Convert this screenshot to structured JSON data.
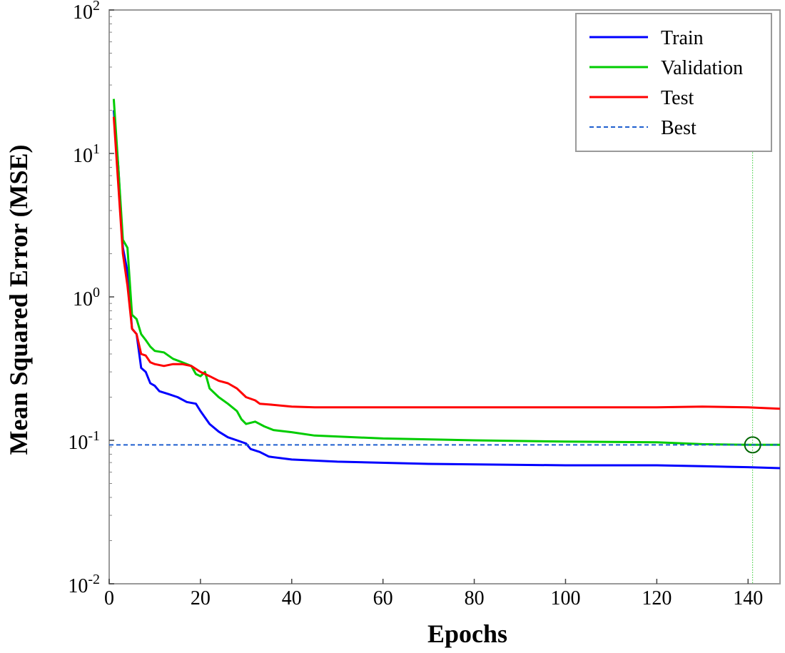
{
  "chart_data": {
    "type": "line",
    "xlabel": "Epochs",
    "ylabel": "Mean Squared Error (MSE)",
    "xlim": [
      0,
      147
    ],
    "ylim": [
      0.01,
      100
    ],
    "yscale": "log",
    "x_ticks": [
      0,
      20,
      40,
      60,
      80,
      100,
      120,
      140
    ],
    "y_ticks": [
      {
        "value": 100,
        "base": "10",
        "exp": "2"
      },
      {
        "value": 10,
        "base": "10",
        "exp": "1"
      },
      {
        "value": 1,
        "base": "10",
        "exp": "0"
      },
      {
        "value": 0.1,
        "base": "10",
        "exp": "-1"
      },
      {
        "value": 0.01,
        "base": "10",
        "exp": "-2"
      }
    ],
    "legend_position": "top-right",
    "series": [
      {
        "name": "Train",
        "color": "#0000ff",
        "style": "solid",
        "points": [
          [
            1,
            20
          ],
          [
            2,
            8
          ],
          [
            3,
            2.2
          ],
          [
            4,
            1.5
          ],
          [
            5,
            0.6
          ],
          [
            6,
            0.55
          ],
          [
            7,
            0.32
          ],
          [
            8,
            0.3
          ],
          [
            9,
            0.25
          ],
          [
            10,
            0.24
          ],
          [
            11,
            0.22
          ],
          [
            13,
            0.21
          ],
          [
            15,
            0.2
          ],
          [
            17,
            0.185
          ],
          [
            19,
            0.18
          ],
          [
            20,
            0.16
          ],
          [
            22,
            0.13
          ],
          [
            24,
            0.115
          ],
          [
            26,
            0.105
          ],
          [
            28,
            0.1
          ],
          [
            30,
            0.095
          ],
          [
            31,
            0.087
          ],
          [
            33,
            0.083
          ],
          [
            35,
            0.077
          ],
          [
            40,
            0.0735
          ],
          [
            50,
            0.071
          ],
          [
            70,
            0.0685
          ],
          [
            100,
            0.067
          ],
          [
            120,
            0.067
          ],
          [
            130,
            0.066
          ],
          [
            140,
            0.065
          ],
          [
            147,
            0.064
          ]
        ]
      },
      {
        "name": "Validation",
        "color": "#00cc00",
        "style": "solid",
        "points": [
          [
            1,
            24
          ],
          [
            2,
            8
          ],
          [
            3,
            2.5
          ],
          [
            4,
            2.2
          ],
          [
            5,
            0.75
          ],
          [
            6,
            0.7
          ],
          [
            7,
            0.55
          ],
          [
            8,
            0.5
          ],
          [
            9,
            0.45
          ],
          [
            10,
            0.42
          ],
          [
            12,
            0.41
          ],
          [
            14,
            0.37
          ],
          [
            16,
            0.35
          ],
          [
            18,
            0.33
          ],
          [
            19,
            0.29
          ],
          [
            20,
            0.28
          ],
          [
            21,
            0.3
          ],
          [
            22,
            0.23
          ],
          [
            24,
            0.2
          ],
          [
            26,
            0.18
          ],
          [
            28,
            0.16
          ],
          [
            29,
            0.14
          ],
          [
            30,
            0.13
          ],
          [
            32,
            0.135
          ],
          [
            34,
            0.125
          ],
          [
            36,
            0.118
          ],
          [
            40,
            0.114
          ],
          [
            45,
            0.108
          ],
          [
            60,
            0.103
          ],
          [
            80,
            0.1
          ],
          [
            100,
            0.098
          ],
          [
            120,
            0.097
          ],
          [
            130,
            0.094
          ],
          [
            140,
            0.093
          ],
          [
            147,
            0.093
          ]
        ]
      },
      {
        "name": "Test",
        "color": "#ff0000",
        "style": "solid",
        "points": [
          [
            1,
            18
          ],
          [
            2,
            6
          ],
          [
            3,
            2
          ],
          [
            4,
            1.2
          ],
          [
            5,
            0.6
          ],
          [
            6,
            0.55
          ],
          [
            7,
            0.4
          ],
          [
            8,
            0.39
          ],
          [
            9,
            0.35
          ],
          [
            10,
            0.34
          ],
          [
            12,
            0.33
          ],
          [
            14,
            0.34
          ],
          [
            16,
            0.34
          ],
          [
            18,
            0.33
          ],
          [
            20,
            0.3
          ],
          [
            22,
            0.28
          ],
          [
            24,
            0.26
          ],
          [
            26,
            0.25
          ],
          [
            28,
            0.23
          ],
          [
            30,
            0.2
          ],
          [
            32,
            0.19
          ],
          [
            33,
            0.18
          ],
          [
            35,
            0.178
          ],
          [
            40,
            0.172
          ],
          [
            45,
            0.17
          ],
          [
            60,
            0.17
          ],
          [
            100,
            0.17
          ],
          [
            120,
            0.17
          ],
          [
            130,
            0.172
          ],
          [
            140,
            0.17
          ],
          [
            147,
            0.166
          ]
        ]
      },
      {
        "name": "Best",
        "color": "#1f5fcf",
        "style": "dashed",
        "value": 0.093
      }
    ],
    "best_point": {
      "epoch": 141,
      "value": 0.093
    }
  }
}
